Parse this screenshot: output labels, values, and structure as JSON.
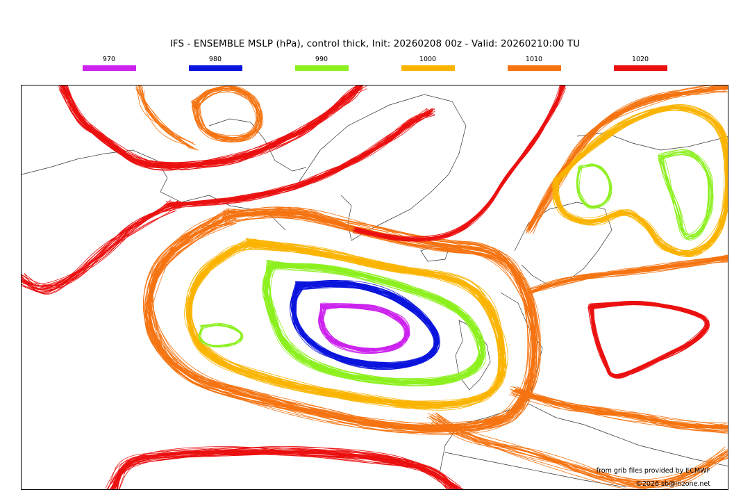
{
  "title": "IFS - ENSEMBLE MSLP (hPa), control thick, Init: 20260208 00z - Valid: 20260210:00 TU",
  "legend": [
    {
      "label": "970",
      "color": "#cc22ee"
    },
    {
      "label": "980",
      "color": "#0a14dc"
    },
    {
      "label": "990",
      "color": "#8cf01e"
    },
    {
      "label": "1000",
      "color": "#fab400"
    },
    {
      "label": "1010",
      "color": "#f57310"
    },
    {
      "label": "1020",
      "color": "#eb1010"
    }
  ],
  "credits": {
    "source": "from grib files provided by ECMWF",
    "copyright": "©2026 sb@irizone.net"
  }
}
